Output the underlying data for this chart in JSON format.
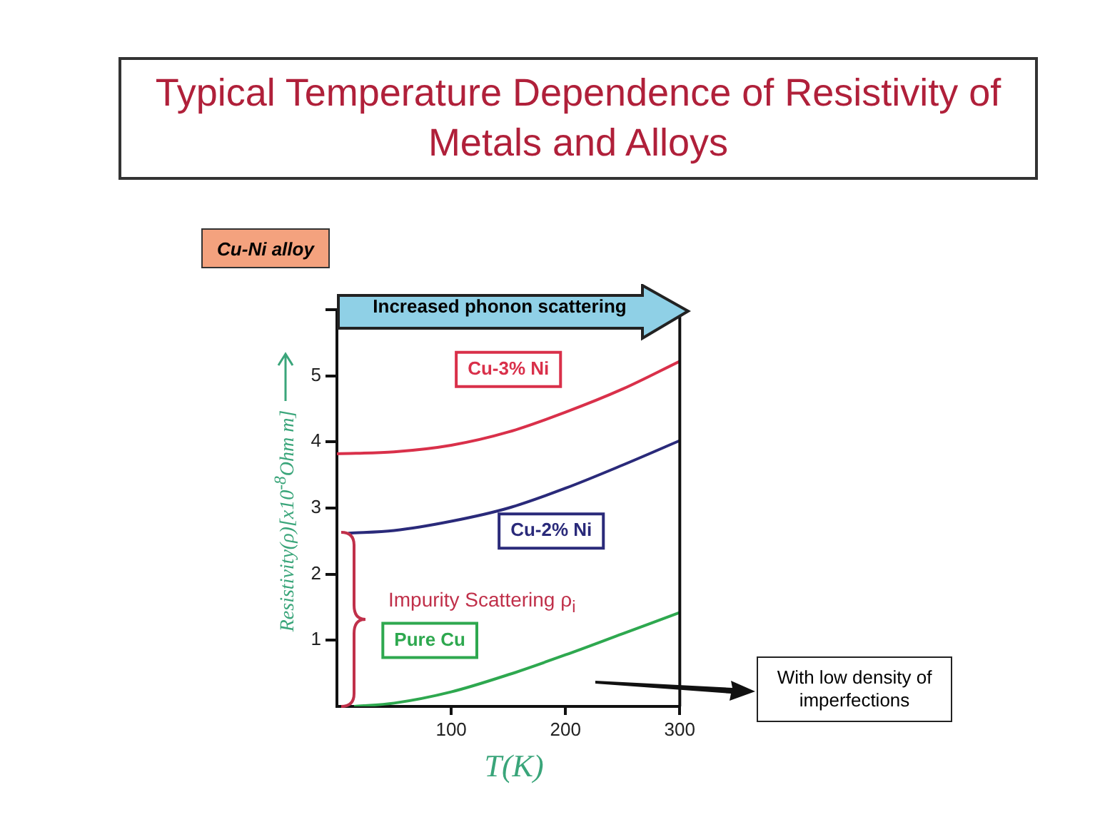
{
  "chart_data": {
    "type": "line",
    "title": "Typical Temperature Dependence of Resistivity of Metals and Alloys",
    "xlabel": "T(K)",
    "ylabel": "Resistivity(ρ)[x10$^{-8}$Ohm m]",
    "annotations": [
      "Cu-Ni alloy",
      "Increased phonon scattering",
      "Impurity Scattering ρ$_{i}$",
      "With low density of imperfections"
    ],
    "series": [
      {
        "name": "Cu-3% Ni",
        "color": "#d9304a",
        "x": [
          0,
          50,
          100,
          150,
          200,
          250,
          300
        ],
        "values": [
          3.82,
          3.85,
          3.95,
          4.15,
          4.45,
          4.8,
          5.22
        ]
      },
      {
        "name": "Cu-2% Ni",
        "color": "#2a2a7a",
        "x": [
          10,
          50,
          100,
          150,
          200,
          250,
          300
        ],
        "values": [
          2.62,
          2.66,
          2.8,
          3.0,
          3.3,
          3.65,
          4.02
        ]
      },
      {
        "name": "Pure Cu",
        "color": "#2ea84f",
        "x": [
          15,
          50,
          100,
          150,
          200,
          250,
          300
        ],
        "values": [
          0,
          0.05,
          0.22,
          0.48,
          0.78,
          1.1,
          1.42
        ]
      }
    ],
    "xlim": [
      0,
      300
    ],
    "xticks": [
      100,
      200,
      300
    ],
    "ylim": [
      0,
      6
    ],
    "yticks": [
      1,
      2,
      3,
      4,
      5,
      {
        "value": 6,
        "label": null
      }
    ],
    "grid": false,
    "legend": false,
    "marker": "none",
    "line_style": "solid"
  }
}
